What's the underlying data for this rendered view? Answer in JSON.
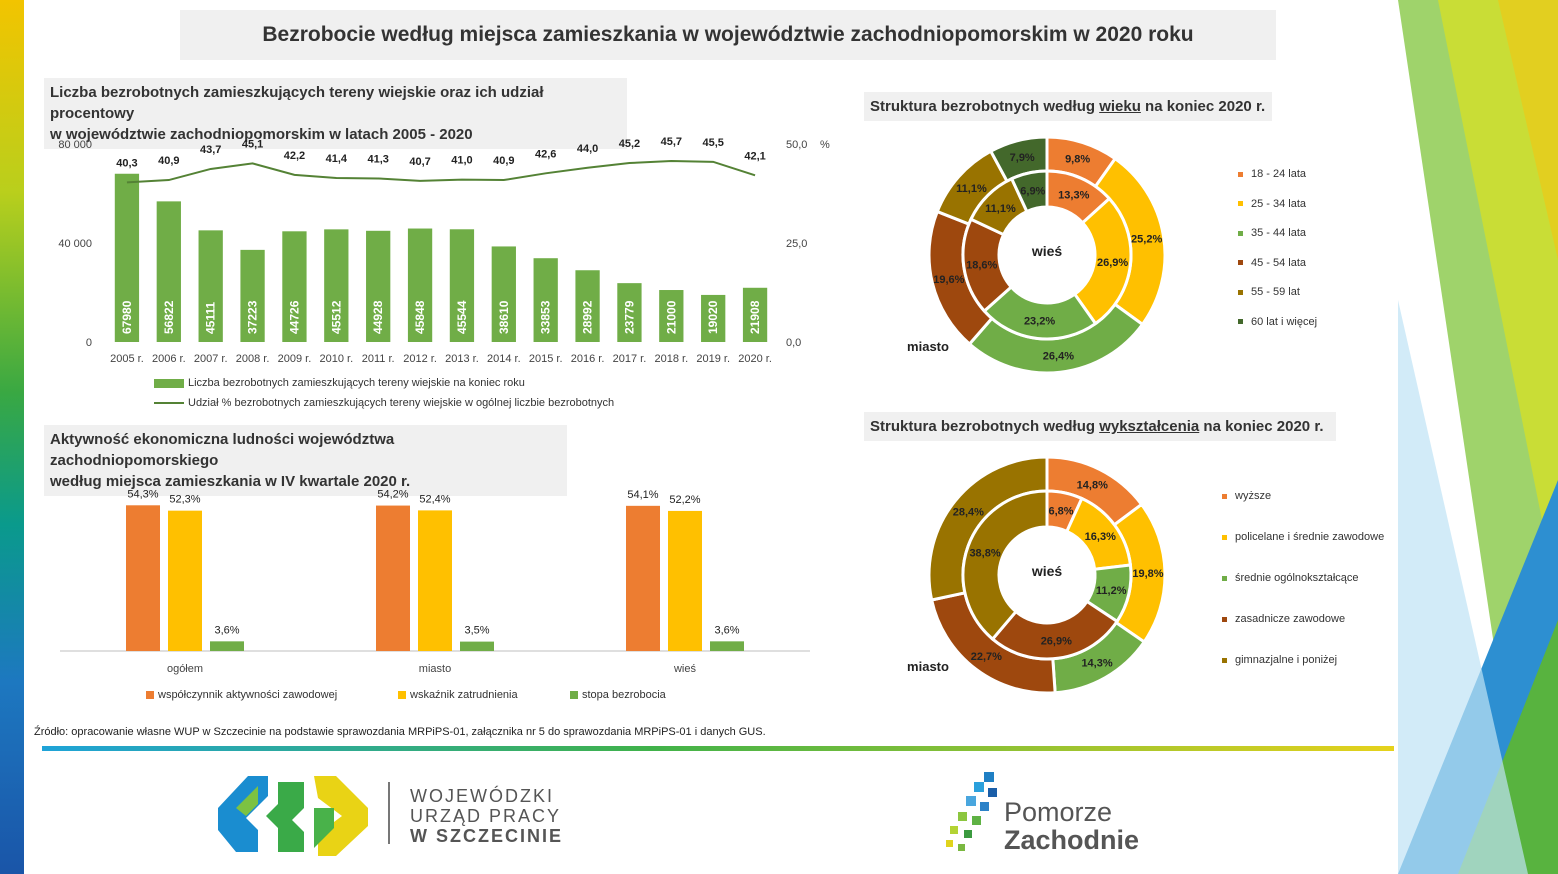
{
  "title": "Bezrobocie według miejsca zamieszkania w województwie zachodniopomorskim w 2020 roku",
  "section1": {
    "title_line1": "Liczba bezrobotnych zamieszkujących tereny wiejskie oraz ich udział procentowy",
    "title_line2": "w województwie zachodniopomorskim w latach 2005 - 2020"
  },
  "section2": {
    "title_line1": "Aktywność ekonomiczna ludności województwa zachodniopomorskiego",
    "title_line2": "według miejsca zamieszkania w IV kwartale 2020 r."
  },
  "section3": {
    "title_pre": "Struktura bezrobotnych według ",
    "title_u": "wieku",
    "title_post": " na koniec 2020 r."
  },
  "section4": {
    "title_pre": "Struktura bezrobotnych według ",
    "title_u": "wykształcenia",
    "title_post": " na koniec 2020 r."
  },
  "source": "Źródło: opracowanie własne WUP w Szczecinie na podstawie sprawozdania MRPiPS-01, załącznika nr 5 do sprawozdania MRPiPS-01 i danych GUS.",
  "logos": {
    "wup_line1": "WOJEWÓDZKI",
    "wup_line2": "URZĄD PRACY",
    "wup_line3": "W  SZCZECINIE",
    "pz_line1": "Pomorze",
    "pz_line2": "Zachodnie"
  },
  "colors": {
    "green": "#70ad47",
    "orange": "#ed7d31",
    "yellow": "#ffc000",
    "darkred": "#9e480e",
    "olive": "#997300",
    "darkgreen": "#43682b",
    "line": "#548235"
  },
  "chart_data": [
    {
      "type": "bar",
      "categories": [
        "2005 r.",
        "2006 r.",
        "2007 r.",
        "2008 r.",
        "2009 r.",
        "2010 r.",
        "2011 r.",
        "2012 r.",
        "2013 r.",
        "2014 r.",
        "2015 r.",
        "2016 r.",
        "2017 r.",
        "2018 r.",
        "2019 r.",
        "2020 r."
      ],
      "series": [
        {
          "name": "Liczba bezrobotnych zamieszkujących tereny wiejskie na koniec roku",
          "values": [
            67980,
            56822,
            45111,
            37223,
            44726,
            45512,
            44928,
            45848,
            45544,
            38610,
            33853,
            28992,
            23779,
            21000,
            19020,
            21908
          ],
          "labels": [
            "67980",
            "56822",
            "45111",
            "37223",
            "44726",
            "45512",
            "44928",
            "45848",
            "45544",
            "38610",
            "33853",
            "28992",
            "23779",
            "21000",
            "19020",
            "21908"
          ]
        },
        {
          "name": "Udział % bezrobotnych zamieszkujących tereny wiejskie w ogólnej liczbie bezrobotnych",
          "type": "line",
          "axis": "right",
          "values": [
            40.3,
            40.9,
            43.7,
            45.1,
            42.2,
            41.4,
            41.3,
            40.7,
            41.0,
            40.9,
            42.6,
            44.0,
            45.2,
            45.7,
            45.5,
            42.1
          ],
          "labels": [
            "40,3",
            "40,9",
            "43,7",
            "45,1",
            "42,2",
            "41,4",
            "41,3",
            "40,7",
            "41,0",
            "40,9",
            "42,6",
            "44,0",
            "45,2",
            "45,7",
            "45,5",
            "42,1"
          ]
        }
      ],
      "ylim": [
        0,
        80000
      ],
      "y_ticks": [
        "0",
        "40 000",
        "80 000"
      ],
      "y2lim": [
        0,
        50
      ],
      "y2_ticks": [
        "0,0",
        "25,0",
        "50,0"
      ],
      "y2label": "%",
      "legend": "bottom"
    },
    {
      "type": "bar",
      "categories": [
        "ogółem",
        "miasto",
        "wieś"
      ],
      "series": [
        {
          "name": "współczynnik aktywności zawodowej",
          "values": [
            54.3,
            54.2,
            54.1
          ],
          "labels": [
            "54,3%",
            "54,2%",
            "54,1%"
          ]
        },
        {
          "name": "wskaźnik zatrudnienia",
          "values": [
            52.3,
            52.4,
            52.2
          ],
          "labels": [
            "52,3%",
            "52,4%",
            "52,2%"
          ]
        },
        {
          "name": "stopa bezrobocia",
          "values": [
            3.6,
            3.5,
            3.6
          ],
          "labels": [
            "3,6%",
            "3,5%",
            "3,6%"
          ]
        }
      ],
      "ylim": [
        0,
        60
      ],
      "legend": "bottom"
    },
    {
      "type": "pie",
      "subtype": "donut",
      "center_label": "wieś",
      "outer_label": "miasto",
      "categories": [
        "18 - 24 lata",
        "25 - 34 lata",
        "35 - 44 lata",
        "45 - 54 lata",
        "55 - 59 lat",
        "60 lat i więcej"
      ],
      "series": [
        {
          "name": "wieś",
          "ring": "inner",
          "values": [
            13.3,
            26.9,
            23.2,
            18.6,
            11.1,
            6.9
          ],
          "labels": [
            "13,3%",
            "26,9%",
            "23,2%",
            "18,6%",
            "11,1%",
            "6,9%"
          ]
        },
        {
          "name": "miasto",
          "ring": "outer",
          "values": [
            9.8,
            25.2,
            26.4,
            19.6,
            11.1,
            7.9
          ],
          "labels": [
            "9,8%",
            "25,2%",
            "26,4%",
            "19,6%",
            "11,1%",
            "7,9%"
          ]
        }
      ],
      "legend": "right"
    },
    {
      "type": "pie",
      "subtype": "donut",
      "center_label": "wieś",
      "outer_label": "miasto",
      "categories": [
        "wyższe",
        "policelane i średnie zawodowe",
        "średnie ogólnokształcące",
        "zasadnicze zawodowe",
        "gimnazjalne i poniżej"
      ],
      "series": [
        {
          "name": "wieś",
          "ring": "inner",
          "values": [
            6.8,
            16.3,
            11.2,
            26.9,
            38.8
          ],
          "labels": [
            "6,8%",
            "16,3%",
            "11,2%",
            "26,9%",
            "38,8%"
          ]
        },
        {
          "name": "miasto",
          "ring": "outer",
          "values": [
            14.8,
            19.8,
            14.3,
            22.7,
            28.4
          ],
          "labels": [
            "14,8%",
            "19,8%",
            "14,3%",
            "22,7%",
            "28,4%"
          ]
        }
      ],
      "legend": "right"
    }
  ]
}
